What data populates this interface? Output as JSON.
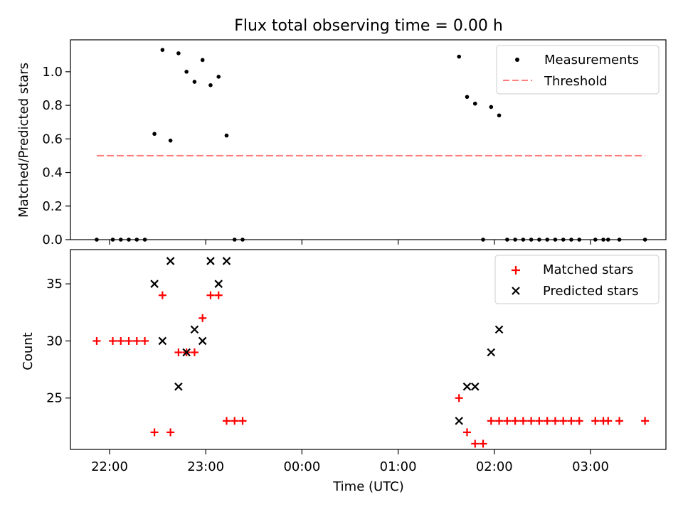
{
  "chart_data": [
    {
      "type": "scatter",
      "title": "Flux total observing time = 0.00 h",
      "xlabel": "",
      "ylabel": "Matched/Predicted stars",
      "ylim": [
        0,
        1.19
      ],
      "yticks": [
        "0.0",
        "0.2",
        "0.4",
        "0.6",
        "0.8",
        "1.0"
      ],
      "ytick_values": [
        0,
        0.2,
        0.4,
        0.6,
        0.8,
        1.0
      ],
      "legend_position": "upper right",
      "legend": [
        "Measurements",
        "Threshold"
      ],
      "series": [
        {
          "name": "Measurements",
          "marker": "dot",
          "color": "#000000",
          "x": [
            "21:52",
            "22:02",
            "22:07",
            "22:12",
            "22:17",
            "22:22",
            "22:28",
            "22:33",
            "22:38",
            "22:43",
            "22:48",
            "22:53",
            "22:58",
            "23:03",
            "23:08",
            "23:13",
            "23:18",
            "23:23",
            "01:38",
            "01:43",
            "01:48",
            "01:53",
            "01:58",
            "02:03",
            "02:08",
            "02:13",
            "02:18",
            "02:23",
            "02:28",
            "02:33",
            "02:38",
            "02:43",
            "02:48",
            "02:53",
            "03:03",
            "03:08",
            "03:11",
            "03:18",
            "03:34"
          ],
          "y": [
            0,
            0,
            0,
            0,
            0,
            0,
            0.63,
            1.13,
            0.59,
            1.11,
            1.0,
            0.94,
            1.07,
            0.92,
            0.97,
            0.62,
            0,
            0,
            1.09,
            0.85,
            0.81,
            0,
            0.79,
            0.74,
            0,
            0,
            0,
            0,
            0,
            0,
            0,
            0,
            0,
            0,
            0,
            0,
            0,
            0,
            0
          ]
        },
        {
          "name": "Threshold",
          "style": "dashed",
          "color": "#ff7f7f",
          "x": [
            "21:52",
            "03:34"
          ],
          "y": [
            0.5,
            0.5
          ]
        }
      ]
    },
    {
      "type": "scatter",
      "xlabel": "Time (UTC)",
      "ylabel": "Count",
      "ylim": [
        20.5,
        38
      ],
      "yticks": [
        "25",
        "30",
        "35"
      ],
      "ytick_values": [
        25,
        30,
        35
      ],
      "xticks": [
        "22:00",
        "23:00",
        "00:00",
        "01:00",
        "02:00",
        "03:00"
      ],
      "legend_position": "upper right",
      "legend": [
        "Matched stars",
        "Predicted stars"
      ],
      "series": [
        {
          "name": "Matched stars",
          "marker": "plus",
          "color": "#ff0000",
          "x": [
            "21:52",
            "22:02",
            "22:07",
            "22:12",
            "22:17",
            "22:22",
            "22:28",
            "22:33",
            "22:38",
            "22:43",
            "22:48",
            "22:53",
            "22:58",
            "23:03",
            "23:08",
            "23:13",
            "23:18",
            "23:23",
            "01:38",
            "01:43",
            "01:48",
            "01:53",
            "01:58",
            "02:03",
            "02:08",
            "02:13",
            "02:18",
            "02:23",
            "02:28",
            "02:33",
            "02:38",
            "02:43",
            "02:48",
            "02:53",
            "03:03",
            "03:08",
            "03:11",
            "03:18",
            "03:34"
          ],
          "y": [
            30,
            30,
            30,
            30,
            30,
            30,
            22,
            34,
            22,
            29,
            29,
            29,
            32,
            34,
            34,
            23,
            23,
            23,
            25,
            22,
            21,
            21,
            23,
            23,
            23,
            23,
            23,
            23,
            23,
            23,
            23,
            23,
            23,
            23,
            23,
            23,
            23,
            23,
            23
          ]
        },
        {
          "name": "Predicted stars",
          "marker": "x",
          "color": "#000000",
          "x": [
            "22:28",
            "22:33",
            "22:38",
            "22:43",
            "22:48",
            "22:53",
            "22:58",
            "23:03",
            "23:08",
            "23:13",
            "01:38",
            "01:43",
            "01:48",
            "01:58",
            "02:03"
          ],
          "y": [
            35,
            30,
            37,
            26,
            29,
            31,
            30,
            37,
            35,
            37,
            23,
            26,
            26,
            29,
            31
          ]
        }
      ]
    }
  ]
}
